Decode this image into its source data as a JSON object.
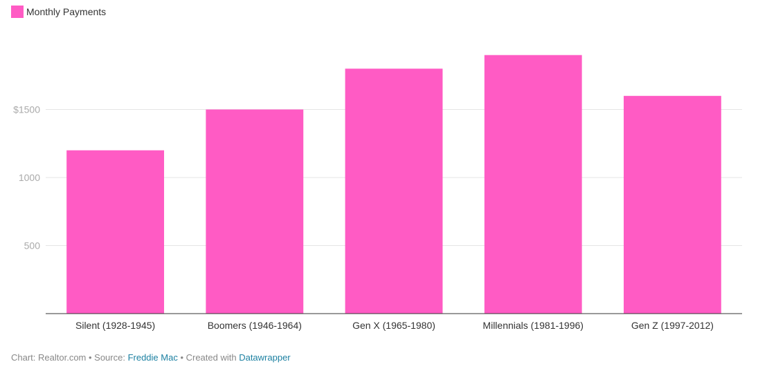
{
  "chart_data": {
    "type": "bar",
    "categories": [
      "Silent (1928-1945)",
      "Boomers (1946-1964)",
      "Gen X (1965-1980)",
      "Millennials (1981-1996)",
      "Gen Z (1997-2012)"
    ],
    "series": [
      {
        "name": "Monthly Payments",
        "values": [
          1200,
          1500,
          1800,
          1900,
          1600
        ],
        "color": "#ff5bc4"
      }
    ],
    "y_ticks": [
      {
        "value": 500,
        "label": "500"
      },
      {
        "value": 1000,
        "label": "1000"
      },
      {
        "value": 1500,
        "label": "$1500"
      }
    ],
    "ylim": [
      0,
      2000
    ],
    "grid": true,
    "legend_position": "top-left"
  },
  "footer": {
    "chart_prefix": "Chart: Realtor.com",
    "separator1": " • ",
    "source_prefix": "Source: ",
    "source_link": "Freddie Mac",
    "separator2": " • ",
    "created_prefix": "Created with ",
    "created_link": "Datawrapper"
  },
  "colors": {
    "grid": "#e5e5e5",
    "axis": "#333333",
    "tick_label": "#aaaaaa",
    "category_label": "#333333"
  }
}
